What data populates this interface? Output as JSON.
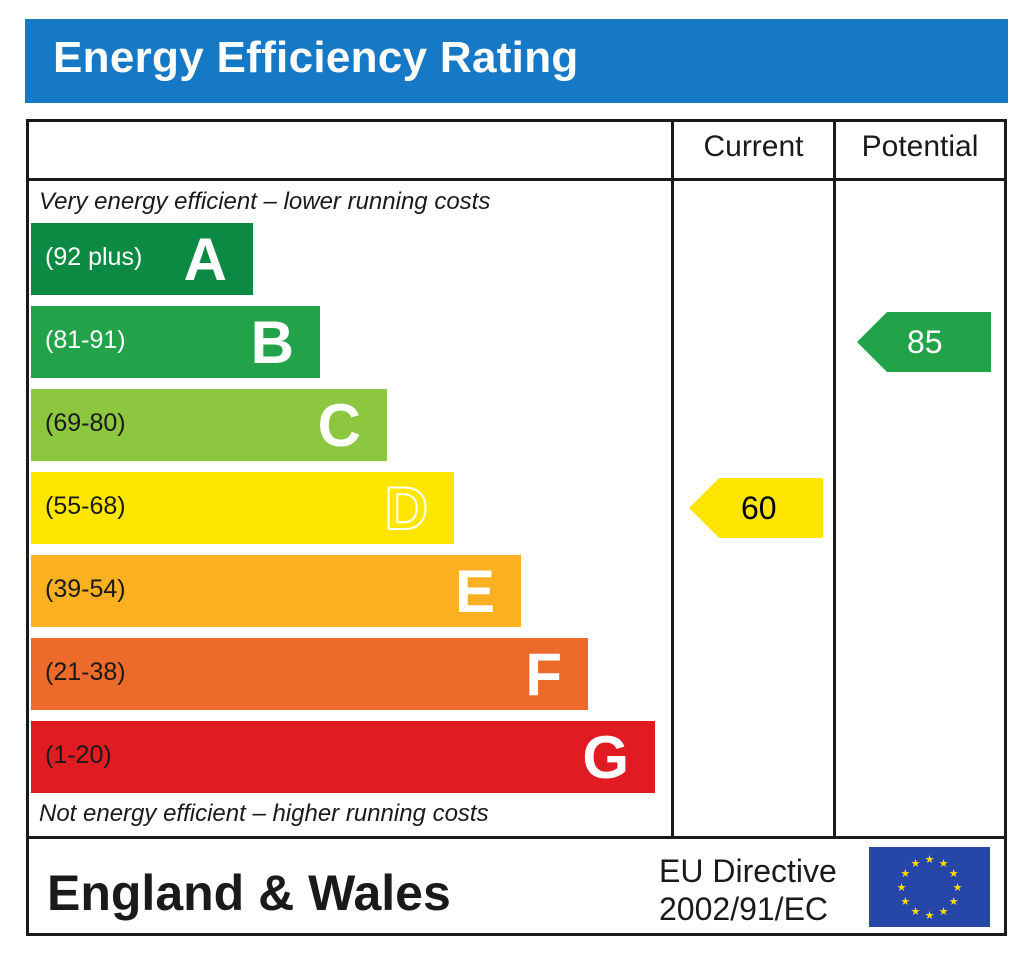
{
  "header": {
    "title": "Energy Efficiency Rating"
  },
  "columns": {
    "current": "Current",
    "potential": "Potential"
  },
  "notes": {
    "top": "Very energy efficient – lower running costs",
    "bottom": "Not energy efficient – higher running costs"
  },
  "chart_data": {
    "type": "bar",
    "categories": [
      "A",
      "B",
      "C",
      "D",
      "E",
      "F",
      "G"
    ],
    "ranges": [
      "(92 plus)",
      "(81-91)",
      "(69-80)",
      "(55-68)",
      "(39-54)",
      "(21-38)",
      "(1-20)"
    ],
    "colors": [
      "#0c8a44",
      "#22a34a",
      "#8dc63f",
      "#ffe600",
      "#fbb021",
      "#ec6b2b",
      "#e01b22"
    ],
    "range_text_colors": [
      "#ffffff",
      "#ffffff",
      "#1a1a1a",
      "#1a1a1a",
      "#1a1a1a",
      "#1a1a1a",
      "#1a1a1a"
    ],
    "current": {
      "value": 60,
      "band": "D",
      "color": "#ffe600"
    },
    "potential": {
      "value": 85,
      "band": "B",
      "color": "#22a34a"
    }
  },
  "footer": {
    "region": "England & Wales",
    "directive_line1": "EU Directive",
    "directive_line2": "2002/91/EC"
  }
}
